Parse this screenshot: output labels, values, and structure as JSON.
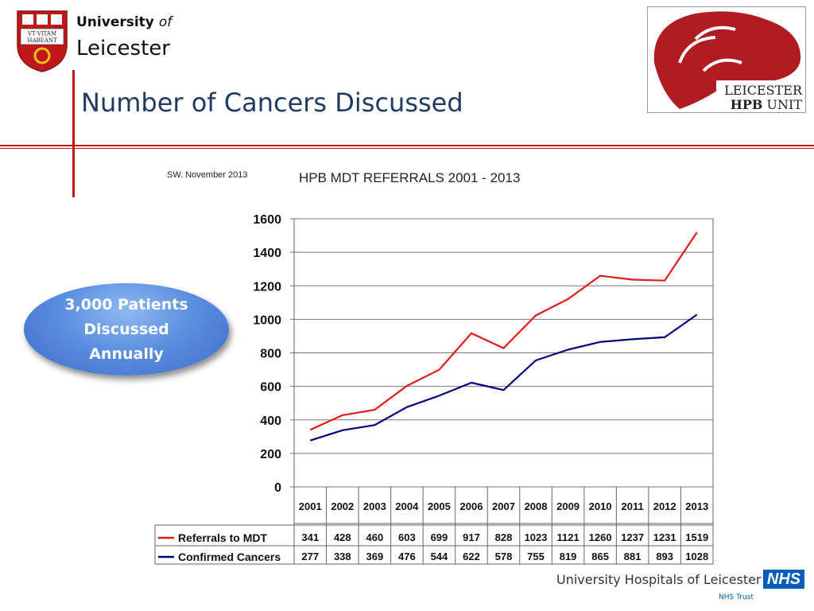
{
  "header": {
    "university_word": "University",
    "of_word": "of",
    "city": "Leicester",
    "crest_motto": [
      "VT·VITAM",
      "HABEANT"
    ],
    "page_title": "Number of Cancers Discussed",
    "unit_logo_line1": "LEICESTER",
    "unit_logo_line2_bold": "HPB",
    "unit_logo_line2_rest": "UNIT"
  },
  "note": "SW. November 2013",
  "bubble_lines": [
    "3,000 Patients",
    "Discussed",
    "Annually"
  ],
  "footer": {
    "org_name": "University Hospitals of Leicester",
    "nhs": "NHS",
    "trust": "NHS Trust"
  },
  "colors": {
    "referrals": "#e0191b",
    "confirmed": "#000080",
    "title_blue": "#1f3a5f",
    "rule_red": "#c0171a",
    "logo_red": "#b01c22"
  },
  "chart_data": {
    "type": "line",
    "title": "HPB MDT REFERRALS 2001 - 2013",
    "categories": [
      "2001",
      "2002",
      "2003",
      "2004",
      "2005",
      "2006",
      "2007",
      "2008",
      "2009",
      "2010",
      "2011",
      "2012",
      "2013"
    ],
    "series": [
      {
        "name": "Referrals to MDT",
        "values": [
          341,
          428,
          460,
          603,
          699,
          917,
          828,
          1023,
          1121,
          1260,
          1237,
          1231,
          1519
        ]
      },
      {
        "name": "Confirmed Cancers",
        "values": [
          277,
          338,
          369,
          476,
          544,
          622,
          578,
          755,
          819,
          865,
          881,
          893,
          1028
        ]
      }
    ],
    "ylim": [
      0,
      1600
    ],
    "yticks": [
      "0",
      "200",
      "400",
      "600",
      "800",
      "1000",
      "1200",
      "1400",
      "1600"
    ],
    "grid": true,
    "legend": "data-table-bottom"
  }
}
